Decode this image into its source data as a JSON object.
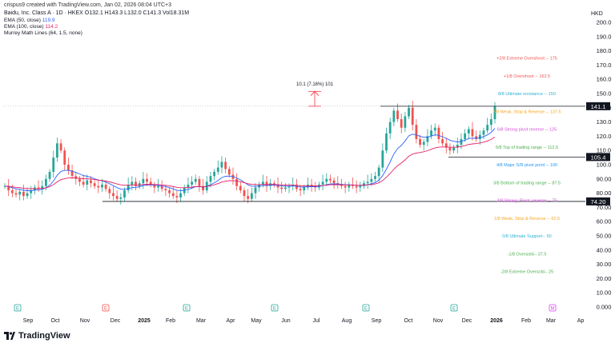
{
  "header": {
    "created_by": "crispus9 created with TradingView.com, Jan 02, 2026 08:04 UTC+3",
    "ticker_line": "Baidu, Inc. Class A · 1D · HKEX  O132.1 H143.3 L132.0 C141.3 Vol18.31M",
    "ema50": "EMA (50, close)",
    "ema50_value": "119.9",
    "ema100": "EMA (100, close)",
    "ema100_value": "114.2",
    "murrey": "Murrey Math Lines (64, 1.5, none)",
    "currency": "HKD",
    "brand": "TradingView"
  },
  "chart_data": {
    "type": "candlestick",
    "y_ticks": [
      "200.0",
      "190.0",
      "180.0",
      "170.0",
      "160.0",
      "150.0",
      "140.0",
      "130.0",
      "120.0",
      "110.0",
      "100.0",
      "90.00",
      "80.00",
      "70.00",
      "60.00",
      "50.00",
      "40.00",
      "30.00",
      "20.00",
      "10.00",
      "0.000"
    ],
    "ylim": [
      0,
      200
    ],
    "x_ticks": [
      "Sep",
      "Oct",
      "Nov",
      "Dec",
      "2025",
      "Feb",
      "Mar",
      "Apr",
      "May",
      "Jun",
      "Jul",
      "Aug",
      "Sep",
      "Oct",
      "Nov",
      "Dec",
      "2026",
      "Feb",
      "Mar",
      "Ap"
    ],
    "price_labels": [
      {
        "text": "141.1",
        "value": 141.1
      },
      {
        "text": "105.4",
        "value": 105.4
      },
      {
        "text": "74.20",
        "value": 74.2
      }
    ],
    "measure_annotation": "10.1 (7.16%) 101",
    "murrey_levels": [
      {
        "label": "+2/8 Extreme Overshoot --  175",
        "value": 175,
        "color": "#f05454"
      },
      {
        "label": "+1/8 Overshoot --  162.5",
        "value": 162.5,
        "color": "#f05454"
      },
      {
        "label": "8/8 Ultimate resistance --  150",
        "value": 150,
        "color": "#2ab3d6"
      },
      {
        "label": "7/8 Weak, Stop & Reverse --  137.5",
        "value": 137.5,
        "color": "#f5a623"
      },
      {
        "label": "6/8 Strong pivot reverse --  125",
        "value": 125,
        "color": "#d44fd6"
      },
      {
        "label": "5/8 Top of trading range --  112.5",
        "value": 112.5,
        "color": "#4caf50"
      },
      {
        "label": "4/8 Major S/R pivot point --  100",
        "value": 100,
        "color": "#2196f3"
      },
      {
        "label": "3/8 Bottom of trading range --  87.5",
        "value": 87.5,
        "color": "#4caf50"
      },
      {
        "label": "2/8 Strong, Pivot, reverse --  75",
        "value": 75,
        "color": "#d44fd6"
      },
      {
        "label": "1/8 Weak, Stop & Reverse --  62.5",
        "value": 62.5,
        "color": "#f5a623"
      },
      {
        "label": "0/8 Ultimate Support--  50",
        "value": 50,
        "color": "#2ab3d6"
      },
      {
        "label": "-1/8 Oversold--  37.5",
        "value": 37.5,
        "color": "#4caf50"
      },
      {
        "label": "-2/8 Extreme Oversold--  25",
        "value": 25,
        "color": "#4caf50"
      }
    ],
    "closes": [
      85,
      82,
      80,
      79,
      81,
      78,
      80,
      82,
      84,
      83,
      85,
      90,
      95,
      105,
      115,
      110,
      100,
      96,
      92,
      90,
      88,
      86,
      89,
      87,
      85,
      84,
      86,
      83,
      80,
      78,
      76,
      77,
      82,
      86,
      88,
      85,
      87,
      90,
      88,
      86,
      84,
      85,
      83,
      82,
      80,
      78,
      77,
      80,
      84,
      86,
      88,
      90,
      85,
      82,
      88,
      92,
      95,
      98,
      102,
      97,
      93,
      90,
      85,
      82,
      78,
      76,
      80,
      84,
      86,
      88,
      85,
      87,
      86,
      84,
      83,
      84,
      85,
      86,
      83,
      82,
      84,
      86,
      85,
      84,
      86,
      88,
      90,
      89,
      87,
      86,
      85,
      84,
      86,
      85,
      84,
      85,
      87,
      88,
      90,
      92,
      98,
      110,
      122,
      130,
      138,
      132,
      126,
      134,
      140,
      128,
      118,
      114,
      116,
      120,
      124,
      126,
      118,
      115,
      112,
      110,
      112,
      114,
      118,
      122,
      125,
      120,
      118,
      121,
      124,
      128,
      132,
      141
    ],
    "colors": {
      "up": "#26a69a",
      "down": "#ef5350",
      "ema50": "#2962ff",
      "ema100": "#e91e63",
      "measure": "#f23645",
      "hline": "#131722"
    },
    "event_markers": [
      {
        "label": "E",
        "x_index": 6,
        "color": "#26a69a"
      },
      {
        "label": "E",
        "x_index": 42,
        "color": "#ef5350"
      },
      {
        "label": "E",
        "x_index": 72,
        "color": "#26a69a"
      },
      {
        "label": "E",
        "x_index": 102,
        "color": "#26a69a"
      },
      {
        "label": "E",
        "x_index": 136,
        "color": "#26a69a"
      },
      {
        "label": "E",
        "x_index": 167,
        "color": "#26a69a"
      },
      {
        "label": "M",
        "x_index": 210,
        "color": "#e040fb"
      }
    ]
  }
}
